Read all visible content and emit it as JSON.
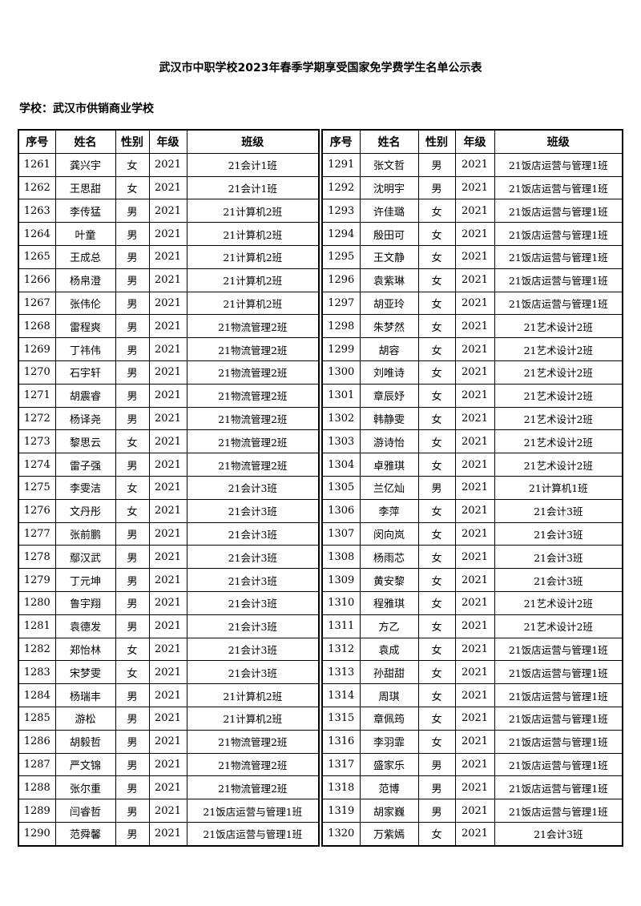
{
  "title": "武汉市中职学校2023年春季学期享受国家免学费学生名单公示表",
  "school_label": "学校：武汉市供销商业学校",
  "headers": [
    "序号",
    "姓名",
    "性别",
    "年级",
    "班级"
  ],
  "left_rows": [
    [
      "1261",
      "龚兴宇",
      "女",
      "2021",
      "21会计1班"
    ],
    [
      "1262",
      "王思甜",
      "女",
      "2021",
      "21会计1班"
    ],
    [
      "1263",
      "李传猛",
      "男",
      "2021",
      "21计算机2班"
    ],
    [
      "1264",
      "叶童",
      "男",
      "2021",
      "21计算机2班"
    ],
    [
      "1265",
      "王成总",
      "男",
      "2021",
      "21计算机2班"
    ],
    [
      "1266",
      "杨帛澄",
      "男",
      "2021",
      "21计算机2班"
    ],
    [
      "1267",
      "张伟伦",
      "男",
      "2021",
      "21计算机2班"
    ],
    [
      "1268",
      "雷程爽",
      "男",
      "2021",
      "21物流管理2班"
    ],
    [
      "1269",
      "丁祎伟",
      "男",
      "2021",
      "21物流管理2班"
    ],
    [
      "1270",
      "石宇轩",
      "男",
      "2021",
      "21物流管理2班"
    ],
    [
      "1271",
      "胡震睿",
      "男",
      "2021",
      "21物流管理2班"
    ],
    [
      "1272",
      "杨译尧",
      "男",
      "2021",
      "21物流管理2班"
    ],
    [
      "1273",
      "黎思云",
      "女",
      "2021",
      "21物流管理2班"
    ],
    [
      "1274",
      "雷子强",
      "男",
      "2021",
      "21物流管理2班"
    ],
    [
      "1275",
      "李雯洁",
      "女",
      "2021",
      "21会计3班"
    ],
    [
      "1276",
      "文丹彤",
      "女",
      "2021",
      "21会计3班"
    ],
    [
      "1277",
      "张前鹏",
      "男",
      "2021",
      "21会计3班"
    ],
    [
      "1278",
      "鄢汉武",
      "男",
      "2021",
      "21会计3班"
    ],
    [
      "1279",
      "丁元坤",
      "男",
      "2021",
      "21会计3班"
    ],
    [
      "1280",
      "鲁宇翔",
      "男",
      "2021",
      "21会计3班"
    ],
    [
      "1281",
      "袁德发",
      "男",
      "2021",
      "21会计3班"
    ],
    [
      "1282",
      "郑怡林",
      "女",
      "2021",
      "21会计3班"
    ],
    [
      "1283",
      "宋梦雯",
      "女",
      "2021",
      "21会计3班"
    ],
    [
      "1284",
      "杨瑞丰",
      "男",
      "2021",
      "21计算机2班"
    ],
    [
      "1285",
      "游松",
      "男",
      "2021",
      "21计算机2班"
    ],
    [
      "1286",
      "胡毅哲",
      "男",
      "2021",
      "21物流管理2班"
    ],
    [
      "1287",
      "严文锦",
      "男",
      "2021",
      "21物流管理2班"
    ],
    [
      "1288",
      "张尔重",
      "男",
      "2021",
      "21物流管理2班"
    ],
    [
      "1289",
      "闫睿哲",
      "男",
      "2021",
      "21饭店运营与管理1班"
    ],
    [
      "1290",
      "范舜馨",
      "男",
      "2021",
      "21饭店运营与管理1班"
    ]
  ],
  "right_rows": [
    [
      "1291",
      "张文哲",
      "男",
      "2021",
      "21饭店运营与管理1班"
    ],
    [
      "1292",
      "沈明宇",
      "男",
      "2021",
      "21饭店运营与管理1班"
    ],
    [
      "1293",
      "许佳璐",
      "女",
      "2021",
      "21饭店运营与管理1班"
    ],
    [
      "1294",
      "殷田可",
      "女",
      "2021",
      "21饭店运营与管理1班"
    ],
    [
      "1295",
      "王文静",
      "女",
      "2021",
      "21饭店运营与管理1班"
    ],
    [
      "1296",
      "袁紫琳",
      "女",
      "2021",
      "21饭店运营与管理1班"
    ],
    [
      "1297",
      "胡亚玲",
      "女",
      "2021",
      "21饭店运营与管理1班"
    ],
    [
      "1298",
      "朱梦然",
      "女",
      "2021",
      "21艺术设计2班"
    ],
    [
      "1299",
      "胡容",
      "女",
      "2021",
      "21艺术设计2班"
    ],
    [
      "1300",
      "刘唯诗",
      "女",
      "2021",
      "21艺术设计2班"
    ],
    [
      "1301",
      "章辰妤",
      "女",
      "2021",
      "21艺术设计2班"
    ],
    [
      "1302",
      "韩静雯",
      "女",
      "2021",
      "21艺术设计2班"
    ],
    [
      "1303",
      "游诗怡",
      "女",
      "2021",
      "21艺术设计2班"
    ],
    [
      "1304",
      "卓雅琪",
      "女",
      "2021",
      "21艺术设计2班"
    ],
    [
      "1305",
      "兰亿灿",
      "男",
      "2021",
      "21计算机1班"
    ],
    [
      "1306",
      "李萍",
      "女",
      "2021",
      "21会计3班"
    ],
    [
      "1307",
      "闵向岚",
      "女",
      "2021",
      "21会计3班"
    ],
    [
      "1308",
      "杨雨芯",
      "女",
      "2021",
      "21会计3班"
    ],
    [
      "1309",
      "黄安黎",
      "女",
      "2021",
      "21会计3班"
    ],
    [
      "1310",
      "程雅琪",
      "女",
      "2021",
      "21艺术设计2班"
    ],
    [
      "1311",
      "方乙",
      "女",
      "2021",
      "21艺术设计2班"
    ],
    [
      "1312",
      "袁成",
      "女",
      "2021",
      "21饭店运营与管理1班"
    ],
    [
      "1313",
      "孙甜甜",
      "女",
      "2021",
      "21饭店运营与管理1班"
    ],
    [
      "1314",
      "周琪",
      "女",
      "2021",
      "21饭店运营与管理1班"
    ],
    [
      "1315",
      "章佩筠",
      "女",
      "2021",
      "21饭店运营与管理1班"
    ],
    [
      "1316",
      "李羽霏",
      "女",
      "2021",
      "21饭店运营与管理1班"
    ],
    [
      "1317",
      "盛家乐",
      "男",
      "2021",
      "21饭店运营与管理1班"
    ],
    [
      "1318",
      "范博",
      "男",
      "2021",
      "21饭店运营与管理1班"
    ],
    [
      "1319",
      "胡家巍",
      "男",
      "2021",
      "21饭店运营与管理1班"
    ],
    [
      "1320",
      "万紫嫣",
      "女",
      "2021",
      "21会计3班"
    ]
  ]
}
